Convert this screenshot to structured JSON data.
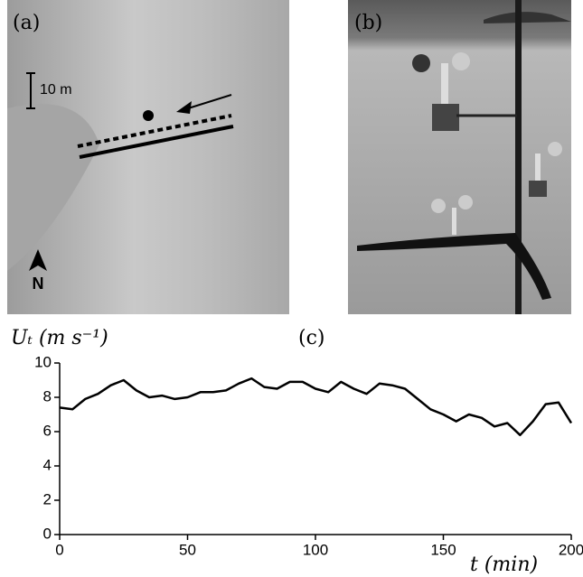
{
  "panels": {
    "a_label": "(a)",
    "scale": "10 m",
    "north": "N",
    "b_label": "(b)",
    "c_label": "(c)"
  },
  "chart_data": {
    "type": "line",
    "y_label": "Uₜ (m s⁻¹)",
    "x_label": "t (min)",
    "x": [
      0,
      5,
      10,
      15,
      20,
      25,
      30,
      35,
      40,
      45,
      50,
      55,
      60,
      65,
      70,
      75,
      80,
      85,
      90,
      95,
      100,
      105,
      110,
      115,
      120,
      125,
      130,
      135,
      140,
      145,
      150,
      155,
      160,
      165,
      170,
      175,
      180,
      185,
      190,
      195,
      200
    ],
    "values": [
      7.4,
      7.3,
      7.9,
      8.2,
      8.7,
      9.0,
      8.4,
      8.0,
      8.1,
      7.9,
      8.0,
      8.3,
      8.3,
      8.4,
      8.8,
      9.1,
      8.6,
      8.5,
      8.9,
      8.9,
      8.5,
      8.3,
      8.9,
      8.5,
      8.2,
      8.8,
      8.7,
      8.5,
      7.9,
      7.3,
      7.0,
      6.6,
      7.0,
      6.8,
      6.3,
      6.5,
      5.8,
      6.6,
      7.6,
      7.7,
      6.5
    ],
    "color": "#000000",
    "xlim": [
      0,
      200
    ],
    "xticks": [
      0,
      50,
      100,
      150,
      200
    ],
    "ylim": [
      0,
      10
    ],
    "yticks": [
      0,
      2,
      4,
      6,
      8,
      10
    ]
  }
}
